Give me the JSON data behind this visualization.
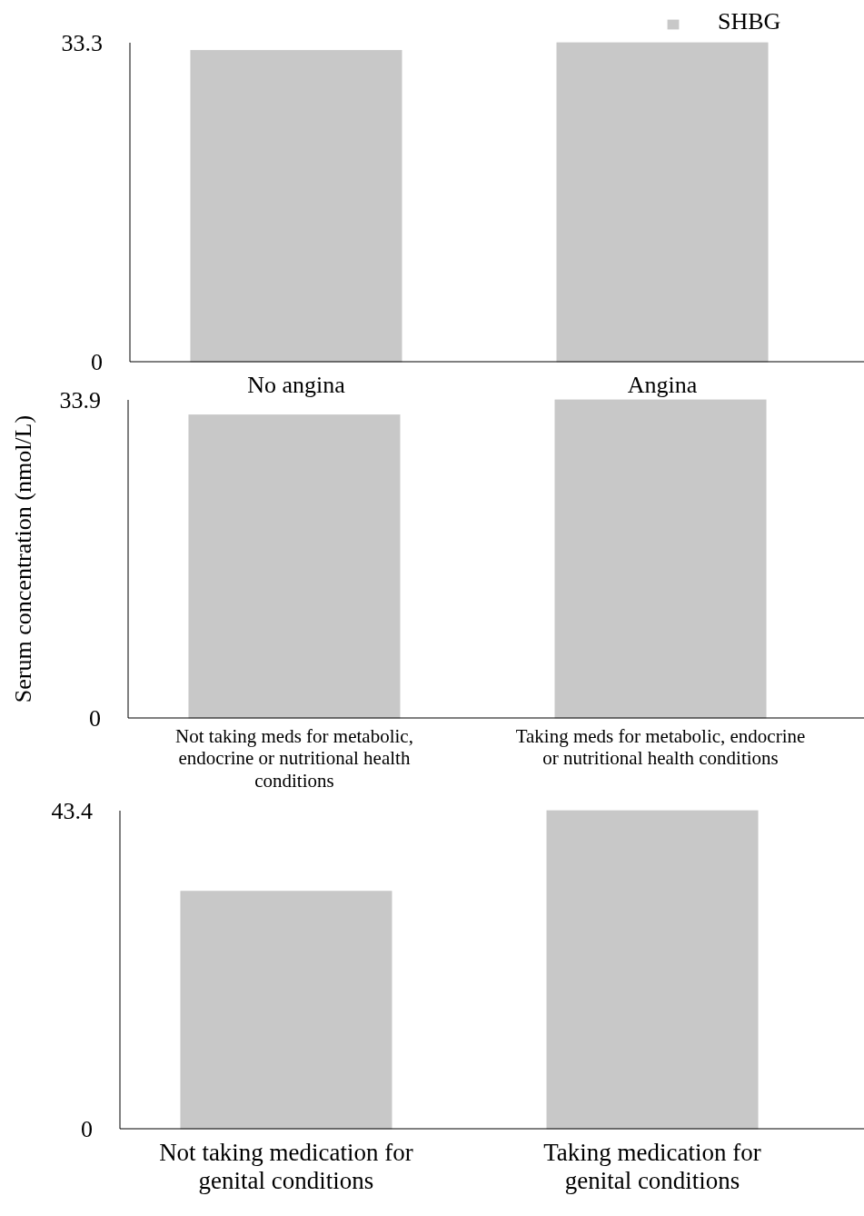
{
  "chart_data": [
    {
      "type": "bar",
      "categories": [
        "No angina",
        "Angina"
      ],
      "series": [
        {
          "name": "SHBG",
          "color": "#c8c8c8",
          "values": [
            32.5,
            33.3
          ]
        }
      ],
      "ylim": [
        0,
        33.3
      ],
      "yticks": [
        0,
        33.3
      ],
      "legend": "top right",
      "grid": false
    },
    {
      "type": "bar",
      "categories": [
        "Not taking meds for metabolic, endocrine or nutritional health conditions",
        "Taking meds for metabolic, endocrine or nutritional health conditions"
      ],
      "series": [
        {
          "color": "#c8c8c8",
          "values": [
            32.3,
            33.9
          ]
        }
      ],
      "ylim": [
        0,
        33.9
      ],
      "yticks": [
        0,
        33.9
      ],
      "ylabel": "Serum concentration (nmol/L)",
      "grid": false
    },
    {
      "type": "bar",
      "categories": [
        "Not taking medication for genital conditions",
        "Taking medication for genital conditions"
      ],
      "series": [
        {
          "color": "#c8c8c8",
          "values": [
            32.4,
            43.4
          ]
        }
      ],
      "ylim": [
        0,
        43.4
      ],
      "yticks": [
        0,
        43.4
      ],
      "grid": false
    }
  ]
}
